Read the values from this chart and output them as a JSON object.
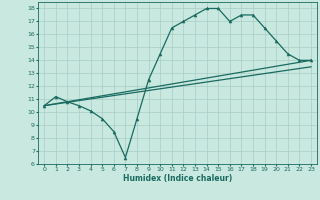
{
  "title": "",
  "xlabel": "Humidex (Indice chaleur)",
  "ylabel": "",
  "bg_color": "#c8e8e0",
  "grid_color": "#a8ccc4",
  "line_color": "#1a6a60",
  "xlim": [
    -0.5,
    23.5
  ],
  "ylim": [
    6,
    18.5
  ],
  "xticks": [
    0,
    1,
    2,
    3,
    4,
    5,
    6,
    7,
    8,
    9,
    10,
    11,
    12,
    13,
    14,
    15,
    16,
    17,
    18,
    19,
    20,
    21,
    22,
    23
  ],
  "yticks": [
    6,
    7,
    8,
    9,
    10,
    11,
    12,
    13,
    14,
    15,
    16,
    17,
    18
  ],
  "line1_x": [
    0,
    1,
    2,
    3,
    4,
    5,
    6,
    7,
    8,
    9,
    10,
    11,
    12,
    13,
    14,
    15,
    16,
    17,
    18,
    19,
    20,
    21,
    22,
    23
  ],
  "line1_y": [
    10.5,
    11.2,
    10.8,
    10.5,
    10.1,
    9.5,
    8.5,
    6.5,
    9.5,
    12.5,
    14.5,
    16.5,
    17.0,
    17.5,
    18.0,
    18.0,
    17.0,
    17.5,
    17.5,
    16.5,
    15.5,
    14.5,
    14.0,
    14.0
  ],
  "line2_x": [
    0,
    23
  ],
  "line2_y": [
    10.5,
    14.0
  ],
  "line3_x": [
    0,
    23
  ],
  "line3_y": [
    10.5,
    13.5
  ],
  "marker_size": 2.2,
  "line_width": 0.9,
  "tick_fontsize": 4.5,
  "xlabel_fontsize": 5.5
}
